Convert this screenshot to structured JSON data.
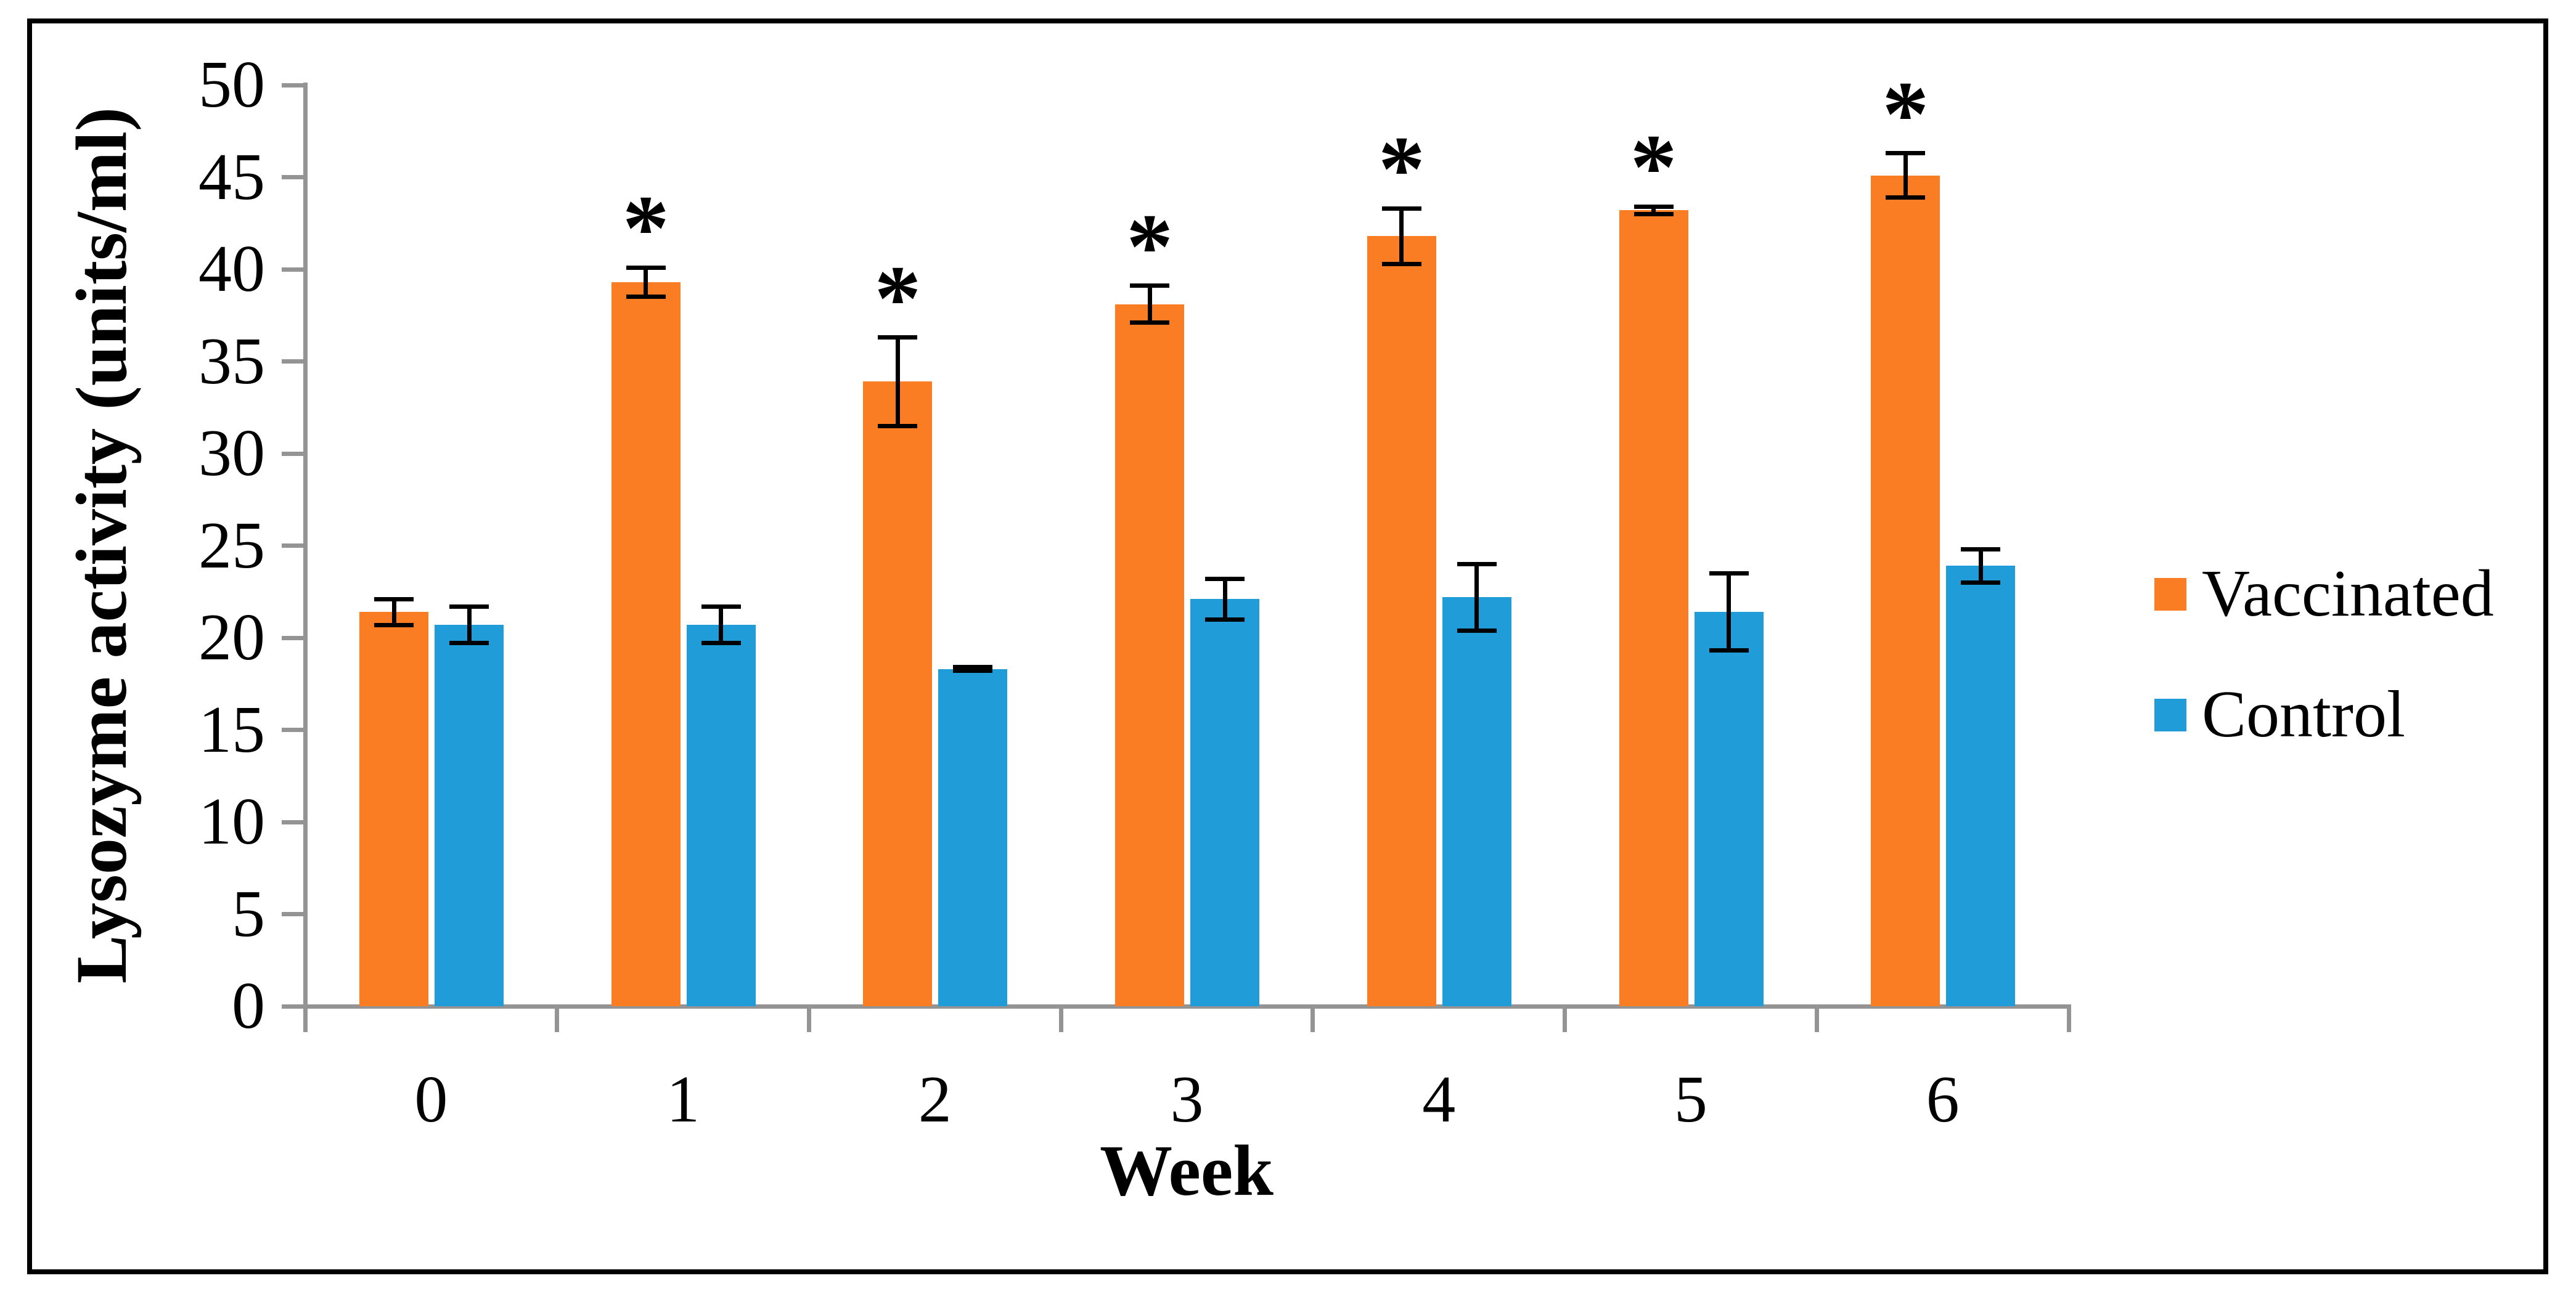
{
  "chart_data": {
    "type": "bar",
    "title": "",
    "xlabel": "Week",
    "ylabel": "Lysozyme activity (units/ml)",
    "categories": [
      "0",
      "1",
      "2",
      "3",
      "4",
      "5",
      "6"
    ],
    "series": [
      {
        "name": "Vaccinated",
        "color": "#FA7D23",
        "values": [
          21.4,
          39.3,
          33.9,
          38.1,
          41.8,
          43.2,
          45.1
        ],
        "errors": [
          0.7,
          0.8,
          2.4,
          1.0,
          1.5,
          0.2,
          1.2
        ],
        "significance": [
          false,
          true,
          true,
          true,
          true,
          true,
          true
        ]
      },
      {
        "name": "Control",
        "color": "#209CD8",
        "values": [
          20.7,
          20.7,
          18.3,
          22.1,
          22.2,
          21.4,
          23.9
        ],
        "errors": [
          1.0,
          1.0,
          0.1,
          1.1,
          1.8,
          2.1,
          0.9
        ],
        "significance": [
          false,
          false,
          false,
          false,
          false,
          false,
          false
        ]
      }
    ],
    "ylim": [
      0,
      50
    ],
    "ytick_step": 5,
    "yticks": [
      "0",
      "5",
      "10",
      "15",
      "20",
      "25",
      "30",
      "35",
      "40",
      "45",
      "50"
    ],
    "significance_marker": "*",
    "legend_position": "right",
    "grid": false,
    "axis_color": "#949494",
    "error_bar_color": "#000000",
    "background_color": "#ffffff",
    "border_color": "#000000"
  },
  "legend": {
    "items": [
      {
        "label": "Vaccinated",
        "color": "#FA7D23"
      },
      {
        "label": "Control",
        "color": "#209CD8"
      }
    ]
  }
}
